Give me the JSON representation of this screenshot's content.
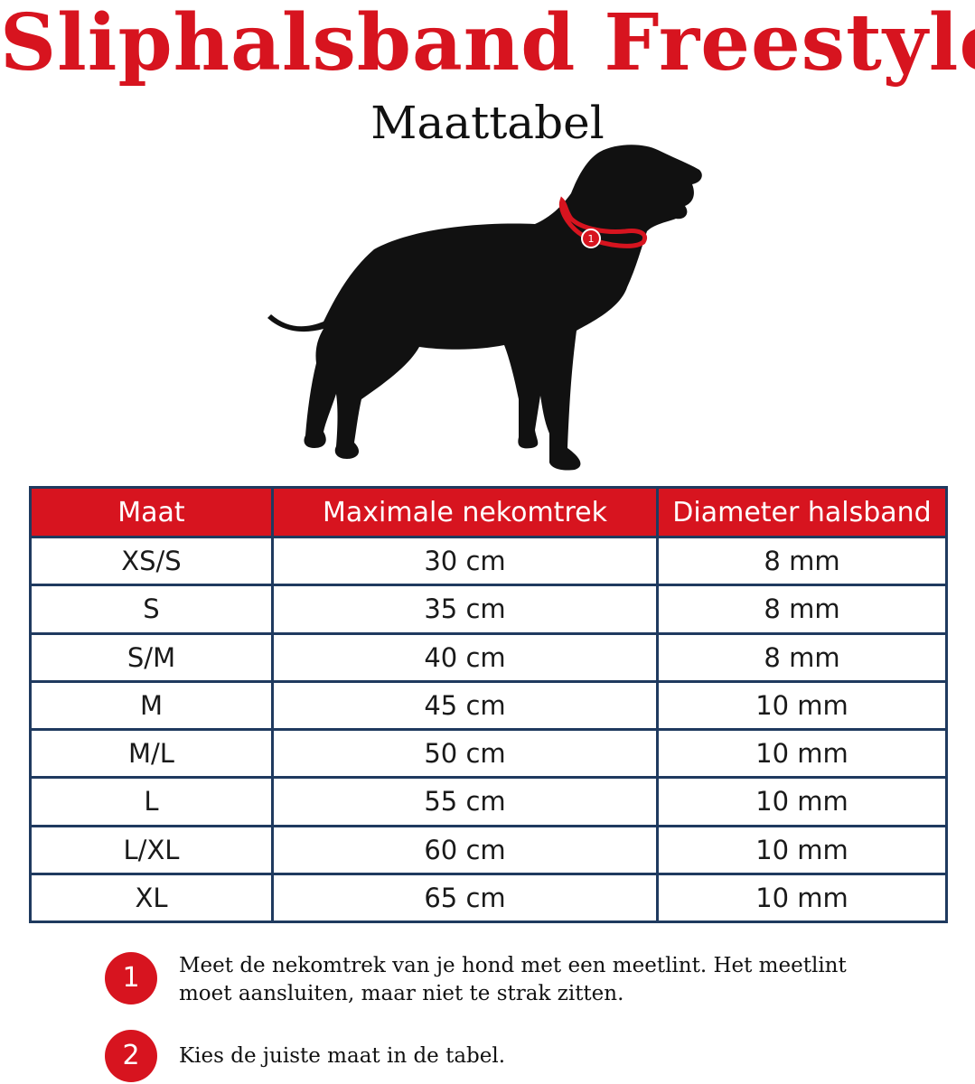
{
  "colors": {
    "brand": "#d7141f",
    "border": "#1f3a5f"
  },
  "title": "Sliphalsband Freestyle",
  "subtitle": "Maattabel",
  "illustration": {
    "icon": "dog-silhouette-icon",
    "marker_label": "1"
  },
  "table": {
    "headers": [
      "Maat",
      "Maximale nekomtrek",
      "Diameter halsband"
    ],
    "rows": [
      [
        "XS/S",
        "30 cm",
        "8 mm"
      ],
      [
        "S",
        "35 cm",
        "8 mm"
      ],
      [
        "S/M",
        "40 cm",
        "8 mm"
      ],
      [
        "M",
        "45 cm",
        "10 mm"
      ],
      [
        "M/L",
        "50 cm",
        "10 mm"
      ],
      [
        "L",
        "55 cm",
        "10 mm"
      ],
      [
        "L/XL",
        "60 cm",
        "10 mm"
      ],
      [
        "XL",
        "65 cm",
        "10 mm"
      ]
    ]
  },
  "steps": [
    {
      "number": "1",
      "text": "Meet de nekomtrek van je hond met een meetlint. Het meetlint moet aansluiten, maar niet te strak zitten."
    },
    {
      "number": "2",
      "text": "Kies de juiste maat in de tabel."
    }
  ]
}
